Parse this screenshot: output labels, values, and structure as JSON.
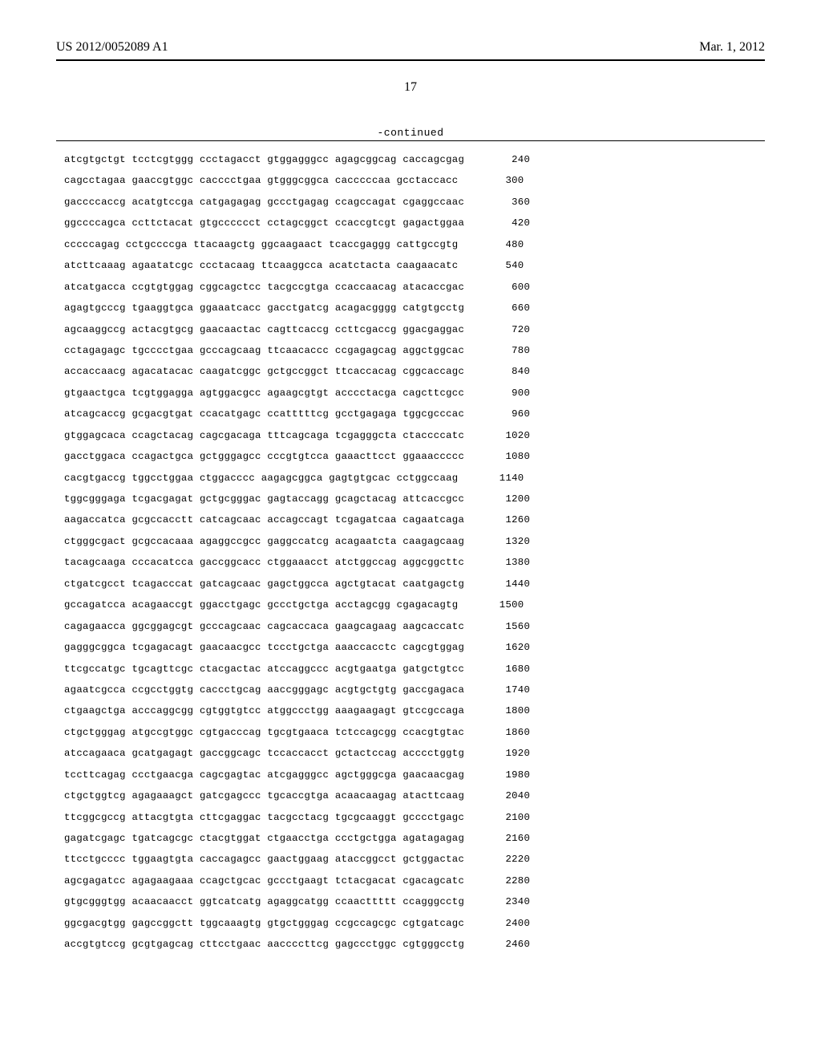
{
  "header": {
    "pub_number": "US 2012/0052089 A1",
    "pub_date": "Mar. 1, 2012"
  },
  "page_number": "17",
  "continued_label": "-continued",
  "sequence": {
    "rows": [
      {
        "groups": [
          "atcgtgctgt",
          "tcctcgtggg",
          "ccctagacct",
          "gtggagggcc",
          "agagcggcag",
          "caccagcgag"
        ],
        "pos": "240"
      },
      {
        "groups": [
          "cagcctagaa",
          "gaaccgtggc",
          "cacccctgaa",
          "gtgggcggca",
          "cacccccaa",
          "gcctaccacc"
        ],
        "pos": "300"
      },
      {
        "groups": [
          "gaccccaccg",
          "acatgtccga",
          "catgagagag",
          "gccctgagag",
          "ccagccagat",
          "cgaggccaac"
        ],
        "pos": "360"
      },
      {
        "groups": [
          "ggccccagca",
          "ccttctacat",
          "gtgcccccct",
          "cctagcggct",
          "ccaccgtcgt",
          "gagactggaa"
        ],
        "pos": "420"
      },
      {
        "groups": [
          "cccccagag",
          "cctgccccga",
          "ttacaagctg",
          "ggcaagaact",
          "tcaccgaggg",
          "cattgccgtg"
        ],
        "pos": "480"
      },
      {
        "groups": [
          "atcttcaaag",
          "agaatatcgc",
          "ccctacaag",
          "ttcaaggcca",
          "acatctacta",
          "caagaacatc"
        ],
        "pos": "540"
      },
      {
        "groups": [
          "atcatgacca",
          "ccgtgtggag",
          "cggcagctcc",
          "tacgccgtga",
          "ccaccaacag",
          "atacaccgac"
        ],
        "pos": "600"
      },
      {
        "groups": [
          "agagtgcccg",
          "tgaaggtgca",
          "ggaaatcacc",
          "gacctgatcg",
          "acagacgggg",
          "catgtgcctg"
        ],
        "pos": "660"
      },
      {
        "groups": [
          "agcaaggccg",
          "actacgtgcg",
          "gaacaactac",
          "cagttcaccg",
          "ccttcgaccg",
          "ggacgaggac"
        ],
        "pos": "720"
      },
      {
        "groups": [
          "cctagagagc",
          "tgcccctgaa",
          "gcccagcaag",
          "ttcaacaccc",
          "ccgagagcag",
          "aggctggcac"
        ],
        "pos": "780"
      },
      {
        "groups": [
          "accaccaacg",
          "agacatacac",
          "caagatcggc",
          "gctgccggct",
          "ttcaccacag",
          "cggcaccagc"
        ],
        "pos": "840"
      },
      {
        "groups": [
          "gtgaactgca",
          "tcgtggagga",
          "agtggacgcc",
          "agaagcgtgt",
          "acccctacga",
          "cagcttcgcc"
        ],
        "pos": "900"
      },
      {
        "groups": [
          "atcagcaccg",
          "gcgacgtgat",
          "ccacatgagc",
          "ccatttttcg",
          "gcctgagaga",
          "tggcgcccac"
        ],
        "pos": "960"
      },
      {
        "groups": [
          "gtggagcaca",
          "ccagctacag",
          "cagcgacaga",
          "tttcagcaga",
          "tcgagggcta",
          "ctaccccatc"
        ],
        "pos": "1020"
      },
      {
        "groups": [
          "gacctggaca",
          "ccagactgca",
          "gctgggagcc",
          "cccgtgtcca",
          "gaaacttcct",
          "ggaaaccccc"
        ],
        "pos": "1080"
      },
      {
        "groups": [
          "cacgtgaccg",
          "tggcctggaa",
          "ctggacccc",
          "aagagcggca",
          "gagtgtgcac",
          "cctggccaag"
        ],
        "pos": "1140"
      },
      {
        "groups": [
          "tggcgggaga",
          "tcgacgagat",
          "gctgcgggac",
          "gagtaccagg",
          "gcagctacag",
          "attcaccgcc"
        ],
        "pos": "1200"
      },
      {
        "groups": [
          "aagaccatca",
          "gcgccacctt",
          "catcagcaac",
          "accagccagt",
          "tcgagatcaa",
          "cagaatcaga"
        ],
        "pos": "1260"
      },
      {
        "groups": [
          "ctgggcgact",
          "gcgccacaaa",
          "agaggccgcc",
          "gaggccatcg",
          "acagaatcta",
          "caagagcaag"
        ],
        "pos": "1320"
      },
      {
        "groups": [
          "tacagcaaga",
          "cccacatcca",
          "gaccggcacc",
          "ctggaaacct",
          "atctggccag",
          "aggcggcttc"
        ],
        "pos": "1380"
      },
      {
        "groups": [
          "ctgatcgcct",
          "tcagacccat",
          "gatcagcaac",
          "gagctggcca",
          "agctgtacat",
          "caatgagctg"
        ],
        "pos": "1440"
      },
      {
        "groups": [
          "gccagatcca",
          "acagaaccgt",
          "ggacctgagc",
          "gccctgctga",
          "acctagcgg",
          "cgagacagtg"
        ],
        "pos": "1500"
      },
      {
        "groups": [
          "cagagaacca",
          "ggcggagcgt",
          "gcccagcaac",
          "cagcaccaca",
          "gaagcagaag",
          "aagcaccatc"
        ],
        "pos": "1560"
      },
      {
        "groups": [
          "gagggcggca",
          "tcgagacagt",
          "gaacaacgcc",
          "tccctgctga",
          "aaaccacctc",
          "cagcgtggag"
        ],
        "pos": "1620"
      },
      {
        "groups": [
          "ttcgccatgc",
          "tgcagttcgc",
          "ctacgactac",
          "atccaggccc",
          "acgtgaatga",
          "gatgctgtcc"
        ],
        "pos": "1680"
      },
      {
        "groups": [
          "agaatcgcca",
          "ccgcctggtg",
          "caccctgcag",
          "aaccgggagc",
          "acgtgctgtg",
          "gaccgagaca"
        ],
        "pos": "1740"
      },
      {
        "groups": [
          "ctgaagctga",
          "acccaggcgg",
          "cgtggtgtcc",
          "atggccctgg",
          "aaagaagagt",
          "gtccgccaga"
        ],
        "pos": "1800"
      },
      {
        "groups": [
          "ctgctgggag",
          "atgccgtggc",
          "cgtgacccag",
          "tgcgtgaaca",
          "tctccagcgg",
          "ccacgtgtac"
        ],
        "pos": "1860"
      },
      {
        "groups": [
          "atccagaaca",
          "gcatgagagt",
          "gaccggcagc",
          "tccaccacct",
          "gctactccag",
          "acccctggtg"
        ],
        "pos": "1920"
      },
      {
        "groups": [
          "tccttcagag",
          "ccctgaacga",
          "cagcgagtac",
          "atcgagggcc",
          "agctgggcga",
          "gaacaacgag"
        ],
        "pos": "1980"
      },
      {
        "groups": [
          "ctgctggtcg",
          "agagaaagct",
          "gatcgagccc",
          "tgcaccgtga",
          "acaacaagag",
          "atacttcaag"
        ],
        "pos": "2040"
      },
      {
        "groups": [
          "ttcggcgccg",
          "attacgtgta",
          "cttcgaggac",
          "tacgcctacg",
          "tgcgcaaggt",
          "gcccctgagc"
        ],
        "pos": "2100"
      },
      {
        "groups": [
          "gagatcgagc",
          "tgatcagcgc",
          "ctacgtggat",
          "ctgaacctga",
          "ccctgctgga",
          "agatagagag"
        ],
        "pos": "2160"
      },
      {
        "groups": [
          "ttcctgcccc",
          "tggaagtgta",
          "caccagagcc",
          "gaactggaag",
          "ataccggcct",
          "gctggactac"
        ],
        "pos": "2220"
      },
      {
        "groups": [
          "agcgagatcc",
          "agagaagaaa",
          "ccagctgcac",
          "gccctgaagt",
          "tctacgacat",
          "cgacagcatc"
        ],
        "pos": "2280"
      },
      {
        "groups": [
          "gtgcgggtgg",
          "acaacaacct",
          "ggtcatcatg",
          "agaggcatgg",
          "ccaacttttt",
          "ccagggcctg"
        ],
        "pos": "2340"
      },
      {
        "groups": [
          "ggcgacgtgg",
          "gagccggctt",
          "tggcaaagtg",
          "gtgctgggag",
          "ccgccagcgc",
          "cgtgatcagc"
        ],
        "pos": "2400"
      },
      {
        "groups": [
          "accgtgtccg",
          "gcgtgagcag",
          "cttcctgaac",
          "aaccccttcg",
          "gagccctggc",
          "cgtgggcctg"
        ],
        "pos": "2460"
      }
    ]
  }
}
